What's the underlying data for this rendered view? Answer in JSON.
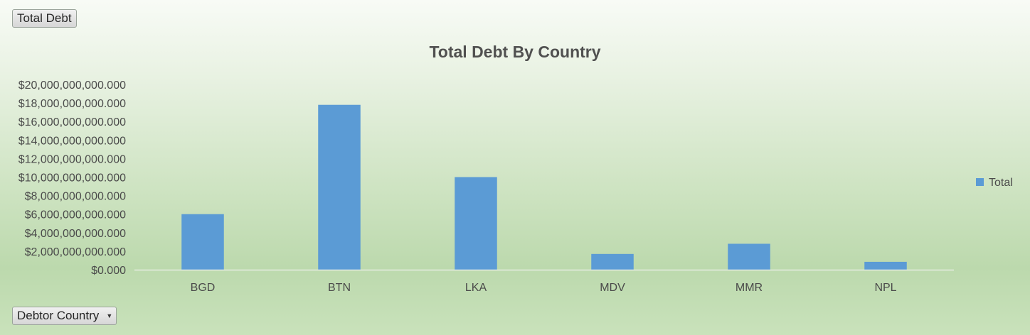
{
  "page_field_button": {
    "label": "Total Debt"
  },
  "axis_field_button": {
    "label": "Debtor Country"
  },
  "chart_data": {
    "type": "bar",
    "title": "Total Debt By Country",
    "xlabel": "",
    "ylabel": "",
    "categories": [
      "BGD",
      "BTN",
      "LKA",
      "MDV",
      "MMR",
      "NPL"
    ],
    "series": [
      {
        "name": "Total",
        "values": [
          6000000000000,
          17800000000000,
          10000000000000,
          1700000000000,
          2800000000000,
          850000000000
        ]
      }
    ],
    "ylim": [
      0,
      20000000000000
    ],
    "yticks": [
      0,
      2000000000000,
      4000000000000,
      6000000000000,
      8000000000000,
      10000000000000,
      12000000000000,
      14000000000000,
      16000000000000,
      18000000000000,
      20000000000000
    ],
    "ytick_labels": [
      "$0.000",
      "$2,000,000,000.000",
      "$4,000,000,000.000",
      "$6,000,000,000.000",
      "$8,000,000,000.000",
      "$10,000,000,000.000",
      "$12,000,000,000.000",
      "$14,000,000,000.000",
      "$16,000,000,000.000",
      "$18,000,000,000.000",
      "$20,000,000,000.000"
    ],
    "grid": false,
    "legend_position": "right",
    "colors": {
      "bar": "#5b9bd5",
      "axis_line": "#e6ece2"
    }
  }
}
